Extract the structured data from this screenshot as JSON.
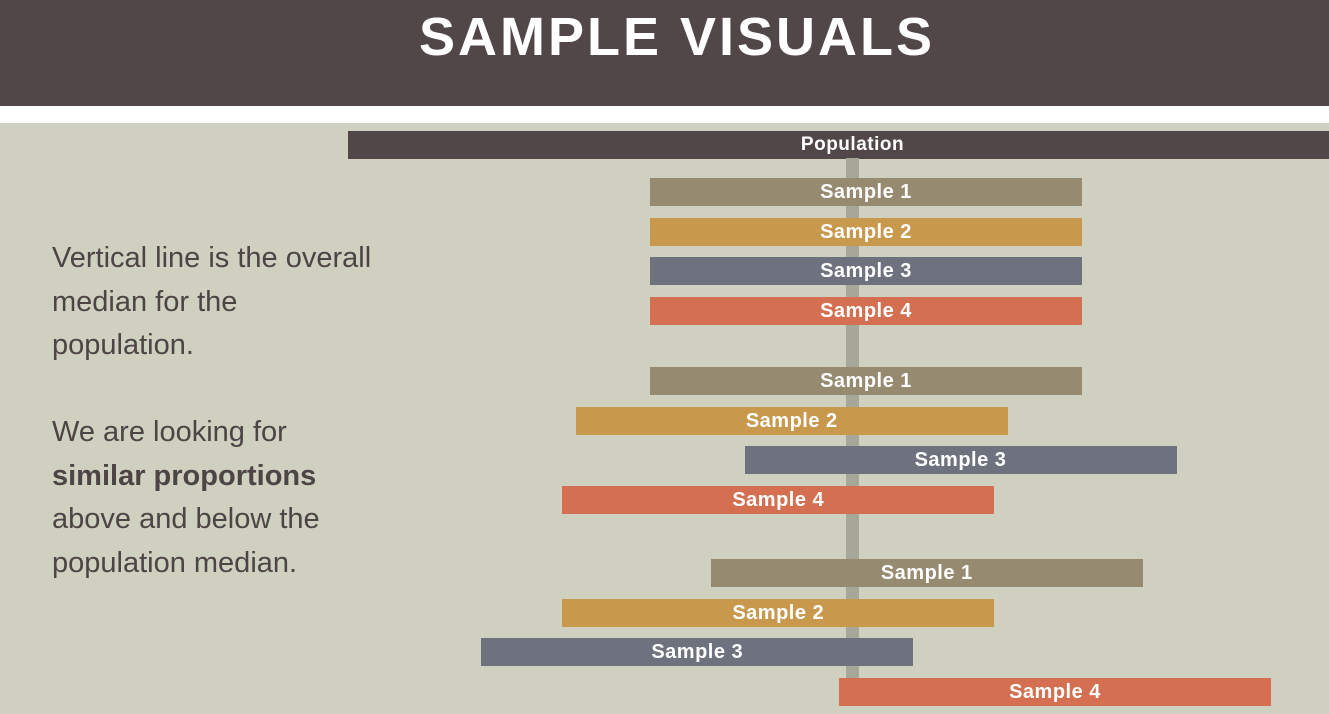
{
  "header": {
    "title": "SAMPLE VISUALS"
  },
  "description": {
    "para1": "Vertical line is the overall median for the population.",
    "para2_start": "We are looking for",
    "para2_bold": "similar proportions",
    "para2_end": "above and below the population median."
  },
  "colors": {
    "population": "#524748",
    "sample1": "#968a70",
    "sample2": "#c8984d",
    "sample3": "#6e727f",
    "sample4": "#d46f52",
    "median_line": "#a6a699"
  },
  "chart_data": {
    "type": "range-bar",
    "population_label": "Population",
    "population_median": 0,
    "groups": [
      {
        "name": "group-1",
        "bars": [
          {
            "label": "Sample 1",
            "color": "sample1",
            "start": -0.3,
            "end": 0.34
          },
          {
            "label": "Sample 2",
            "color": "sample2",
            "start": -0.3,
            "end": 0.34
          },
          {
            "label": "Sample 3",
            "color": "sample3",
            "start": -0.3,
            "end": 0.34
          },
          {
            "label": "Sample 4",
            "color": "sample4",
            "start": -0.3,
            "end": 0.34
          }
        ]
      },
      {
        "name": "group-2",
        "bars": [
          {
            "label": "Sample 1",
            "color": "sample1",
            "start": -0.3,
            "end": 0.34
          },
          {
            "label": "Sample 2",
            "color": "sample2",
            "start": -0.41,
            "end": 0.23
          },
          {
            "label": "Sample 3",
            "color": "sample3",
            "start": -0.16,
            "end": 0.48
          },
          {
            "label": "Sample 4",
            "color": "sample4",
            "start": -0.43,
            "end": 0.21
          }
        ]
      },
      {
        "name": "group-3",
        "bars": [
          {
            "label": "Sample 1",
            "color": "sample1",
            "start": -0.21,
            "end": 0.43
          },
          {
            "label": "Sample 2",
            "color": "sample2",
            "start": -0.43,
            "end": 0.21
          },
          {
            "label": "Sample 3",
            "color": "sample3",
            "start": -0.55,
            "end": 0.09
          },
          {
            "label": "Sample 4",
            "color": "sample4",
            "start": -0.02,
            "end": 0.62
          }
        ]
      }
    ]
  }
}
